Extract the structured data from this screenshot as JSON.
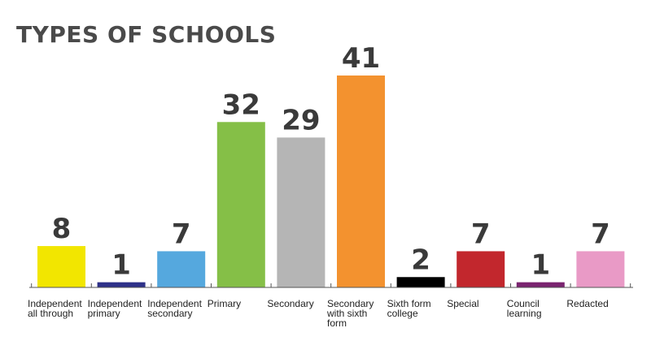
{
  "chart_data": {
    "type": "bar",
    "title": "TYPES OF SCHOOLS",
    "categories": [
      [
        "Independent",
        "all through"
      ],
      [
        "Independent",
        "primary"
      ],
      [
        "Independent",
        "secondary"
      ],
      [
        "Primary"
      ],
      [
        "Secondary"
      ],
      [
        "Secondary",
        "with sixth",
        "form"
      ],
      [
        "Sixth form",
        "college"
      ],
      [
        "Special"
      ],
      [
        "Council",
        "learning"
      ],
      [
        "Redacted"
      ]
    ],
    "values": [
      8,
      1,
      7,
      32,
      29,
      41,
      2,
      7,
      1,
      7
    ],
    "colors": [
      "#f2e600",
      "#2e3189",
      "#55a8de",
      "#85bf47",
      "#b5b5b5",
      "#f3922f",
      "#000000",
      "#c2272d",
      "#7a2470",
      "#e99ac6"
    ],
    "ylim": [
      0,
      41
    ],
    "grid": false
  }
}
